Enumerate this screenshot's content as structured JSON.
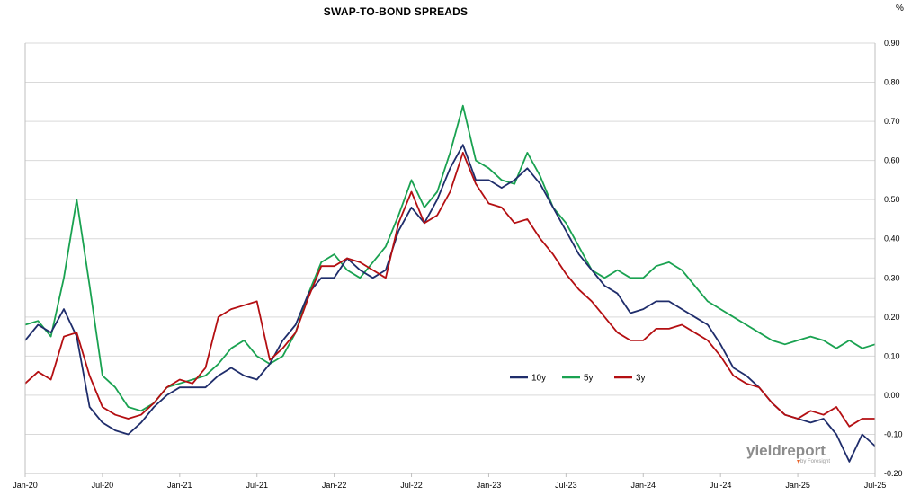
{
  "chart_data": {
    "type": "line",
    "title": "SWAP-TO-BOND SPREADS",
    "unit_label": "%",
    "ylim": [
      -0.2,
      0.9
    ],
    "yticks": [
      "0.90",
      "0.80",
      "0.70",
      "0.60",
      "0.50",
      "0.40",
      "0.30",
      "0.20",
      "0.10",
      "0.00",
      "-0.10",
      "-0.20"
    ],
    "y_axis_position": "right",
    "grid": "horizontal",
    "x_start": "2020-01",
    "x_end": "2025-07",
    "xticks": [
      "Jan-20",
      "Jul-20",
      "Jan-21",
      "Jul-21",
      "Jan-22",
      "Jul-22",
      "Jan-23",
      "Jul-23",
      "Jan-24",
      "Jul-24",
      "Jan-25",
      "Jul-25"
    ],
    "legend": {
      "placement": "center-right"
    },
    "series": [
      {
        "name": "10y",
        "color": "#1f2d6b",
        "points": [
          [
            "2020-01",
            0.14
          ],
          [
            "2020-02",
            0.18
          ],
          [
            "2020-03",
            0.16
          ],
          [
            "2020-04",
            0.22
          ],
          [
            "2020-05",
            0.15
          ],
          [
            "2020-06",
            -0.03
          ],
          [
            "2020-07",
            -0.07
          ],
          [
            "2020-08",
            -0.09
          ],
          [
            "2020-09",
            -0.1
          ],
          [
            "2020-10",
            -0.07
          ],
          [
            "2020-11",
            -0.03
          ],
          [
            "2020-12",
            0.0
          ],
          [
            "2021-01",
            0.02
          ],
          [
            "2021-02",
            0.02
          ],
          [
            "2021-03",
            0.02
          ],
          [
            "2021-04",
            0.05
          ],
          [
            "2021-05",
            0.07
          ],
          [
            "2021-06",
            0.05
          ],
          [
            "2021-07",
            0.04
          ],
          [
            "2021-08",
            0.08
          ],
          [
            "2021-09",
            0.14
          ],
          [
            "2021-10",
            0.18
          ],
          [
            "2021-11",
            0.26
          ],
          [
            "2021-12",
            0.3
          ],
          [
            "2022-01",
            0.3
          ],
          [
            "2022-02",
            0.35
          ],
          [
            "2022-03",
            0.32
          ],
          [
            "2022-04",
            0.3
          ],
          [
            "2022-05",
            0.32
          ],
          [
            "2022-06",
            0.42
          ],
          [
            "2022-07",
            0.48
          ],
          [
            "2022-08",
            0.44
          ],
          [
            "2022-09",
            0.5
          ],
          [
            "2022-10",
            0.58
          ],
          [
            "2022-11",
            0.64
          ],
          [
            "2022-12",
            0.55
          ],
          [
            "2023-01",
            0.55
          ],
          [
            "2023-02",
            0.53
          ],
          [
            "2023-03",
            0.55
          ],
          [
            "2023-04",
            0.58
          ],
          [
            "2023-05",
            0.54
          ],
          [
            "2023-06",
            0.48
          ],
          [
            "2023-07",
            0.42
          ],
          [
            "2023-08",
            0.36
          ],
          [
            "2023-09",
            0.32
          ],
          [
            "2023-10",
            0.28
          ],
          [
            "2023-11",
            0.26
          ],
          [
            "2023-12",
            0.21
          ],
          [
            "2024-01",
            0.22
          ],
          [
            "2024-02",
            0.24
          ],
          [
            "2024-03",
            0.24
          ],
          [
            "2024-04",
            0.22
          ],
          [
            "2024-05",
            0.2
          ],
          [
            "2024-06",
            0.18
          ],
          [
            "2024-07",
            0.13
          ],
          [
            "2024-08",
            0.07
          ],
          [
            "2024-09",
            0.05
          ],
          [
            "2024-10",
            0.02
          ],
          [
            "2024-11",
            -0.02
          ],
          [
            "2024-12",
            -0.05
          ],
          [
            "2025-01",
            -0.06
          ],
          [
            "2025-02",
            -0.07
          ],
          [
            "2025-03",
            -0.06
          ],
          [
            "2025-04",
            -0.1
          ],
          [
            "2025-05",
            -0.17
          ],
          [
            "2025-06",
            -0.1
          ],
          [
            "2025-07",
            -0.13
          ]
        ]
      },
      {
        "name": "5y",
        "color": "#1aa251",
        "points": [
          [
            "2020-01",
            0.18
          ],
          [
            "2020-02",
            0.19
          ],
          [
            "2020-03",
            0.15
          ],
          [
            "2020-04",
            0.3
          ],
          [
            "2020-05",
            0.5
          ],
          [
            "2020-06",
            0.28
          ],
          [
            "2020-07",
            0.05
          ],
          [
            "2020-08",
            0.02
          ],
          [
            "2020-09",
            -0.03
          ],
          [
            "2020-10",
            -0.04
          ],
          [
            "2020-11",
            -0.02
          ],
          [
            "2020-12",
            0.02
          ],
          [
            "2021-01",
            0.03
          ],
          [
            "2021-02",
            0.04
          ],
          [
            "2021-03",
            0.05
          ],
          [
            "2021-04",
            0.08
          ],
          [
            "2021-05",
            0.12
          ],
          [
            "2021-06",
            0.14
          ],
          [
            "2021-07",
            0.1
          ],
          [
            "2021-08",
            0.08
          ],
          [
            "2021-09",
            0.1
          ],
          [
            "2021-10",
            0.16
          ],
          [
            "2021-11",
            0.26
          ],
          [
            "2021-12",
            0.34
          ],
          [
            "2022-01",
            0.36
          ],
          [
            "2022-02",
            0.32
          ],
          [
            "2022-03",
            0.3
          ],
          [
            "2022-04",
            0.34
          ],
          [
            "2022-05",
            0.38
          ],
          [
            "2022-06",
            0.46
          ],
          [
            "2022-07",
            0.55
          ],
          [
            "2022-08",
            0.48
          ],
          [
            "2022-09",
            0.52
          ],
          [
            "2022-10",
            0.62
          ],
          [
            "2022-11",
            0.74
          ],
          [
            "2022-12",
            0.6
          ],
          [
            "2023-01",
            0.58
          ],
          [
            "2023-02",
            0.55
          ],
          [
            "2023-03",
            0.54
          ],
          [
            "2023-04",
            0.62
          ],
          [
            "2023-05",
            0.56
          ],
          [
            "2023-06",
            0.48
          ],
          [
            "2023-07",
            0.44
          ],
          [
            "2023-08",
            0.38
          ],
          [
            "2023-09",
            0.32
          ],
          [
            "2023-10",
            0.3
          ],
          [
            "2023-11",
            0.32
          ],
          [
            "2023-12",
            0.3
          ],
          [
            "2024-01",
            0.3
          ],
          [
            "2024-02",
            0.33
          ],
          [
            "2024-03",
            0.34
          ],
          [
            "2024-04",
            0.32
          ],
          [
            "2024-05",
            0.28
          ],
          [
            "2024-06",
            0.24
          ],
          [
            "2024-07",
            0.22
          ],
          [
            "2024-08",
            0.2
          ],
          [
            "2024-09",
            0.18
          ],
          [
            "2024-10",
            0.16
          ],
          [
            "2024-11",
            0.14
          ],
          [
            "2024-12",
            0.13
          ],
          [
            "2025-01",
            0.14
          ],
          [
            "2025-02",
            0.15
          ],
          [
            "2025-03",
            0.14
          ],
          [
            "2025-04",
            0.12
          ],
          [
            "2025-05",
            0.14
          ],
          [
            "2025-06",
            0.12
          ],
          [
            "2025-07",
            0.13
          ]
        ]
      },
      {
        "name": "3y",
        "color": "#b40f12",
        "points": [
          [
            "2020-01",
            0.03
          ],
          [
            "2020-02",
            0.06
          ],
          [
            "2020-03",
            0.04
          ],
          [
            "2020-04",
            0.15
          ],
          [
            "2020-05",
            0.16
          ],
          [
            "2020-06",
            0.05
          ],
          [
            "2020-07",
            -0.03
          ],
          [
            "2020-08",
            -0.05
          ],
          [
            "2020-09",
            -0.06
          ],
          [
            "2020-10",
            -0.05
          ],
          [
            "2020-11",
            -0.02
          ],
          [
            "2020-12",
            0.02
          ],
          [
            "2021-01",
            0.04
          ],
          [
            "2021-02",
            0.03
          ],
          [
            "2021-03",
            0.07
          ],
          [
            "2021-04",
            0.2
          ],
          [
            "2021-05",
            0.22
          ],
          [
            "2021-06",
            0.23
          ],
          [
            "2021-07",
            0.24
          ],
          [
            "2021-08",
            0.09
          ],
          [
            "2021-09",
            0.12
          ],
          [
            "2021-10",
            0.16
          ],
          [
            "2021-11",
            0.25
          ],
          [
            "2021-12",
            0.33
          ],
          [
            "2022-01",
            0.33
          ],
          [
            "2022-02",
            0.35
          ],
          [
            "2022-03",
            0.34
          ],
          [
            "2022-04",
            0.32
          ],
          [
            "2022-05",
            0.3
          ],
          [
            "2022-06",
            0.44
          ],
          [
            "2022-07",
            0.52
          ],
          [
            "2022-08",
            0.44
          ],
          [
            "2022-09",
            0.46
          ],
          [
            "2022-10",
            0.52
          ],
          [
            "2022-11",
            0.62
          ],
          [
            "2022-12",
            0.54
          ],
          [
            "2023-01",
            0.49
          ],
          [
            "2023-02",
            0.48
          ],
          [
            "2023-03",
            0.44
          ],
          [
            "2023-04",
            0.45
          ],
          [
            "2023-05",
            0.4
          ],
          [
            "2023-06",
            0.36
          ],
          [
            "2023-07",
            0.31
          ],
          [
            "2023-08",
            0.27
          ],
          [
            "2023-09",
            0.24
          ],
          [
            "2023-10",
            0.2
          ],
          [
            "2023-11",
            0.16
          ],
          [
            "2023-12",
            0.14
          ],
          [
            "2024-01",
            0.14
          ],
          [
            "2024-02",
            0.17
          ],
          [
            "2024-03",
            0.17
          ],
          [
            "2024-04",
            0.18
          ],
          [
            "2024-05",
            0.16
          ],
          [
            "2024-06",
            0.14
          ],
          [
            "2024-07",
            0.1
          ],
          [
            "2024-08",
            0.05
          ],
          [
            "2024-09",
            0.03
          ],
          [
            "2024-10",
            0.02
          ],
          [
            "2024-11",
            -0.02
          ],
          [
            "2024-12",
            -0.05
          ],
          [
            "2025-01",
            -0.06
          ],
          [
            "2025-02",
            -0.04
          ],
          [
            "2025-03",
            -0.05
          ],
          [
            "2025-04",
            -0.03
          ],
          [
            "2025-05",
            -0.08
          ],
          [
            "2025-06",
            -0.06
          ],
          [
            "2025-07",
            -0.06
          ]
        ]
      }
    ]
  },
  "watermark": {
    "brand": "yieldreport",
    "sub": "by Foresight"
  }
}
